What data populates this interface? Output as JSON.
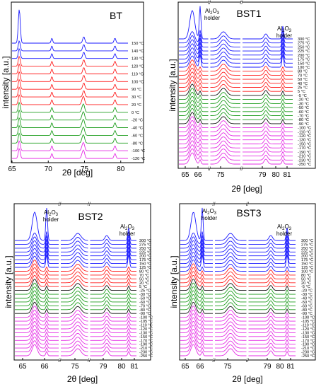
{
  "figure": {
    "colors": {
      "blue": "#1a1aff",
      "red": "#ff2020",
      "green": "#1f9e1f",
      "black": "#111111",
      "magenta": "#e52ee5",
      "frame": "#000000"
    }
  },
  "chart_data": [
    {
      "type": "line",
      "title": "BT",
      "xlabel": "2θ [deg]",
      "ylabel": "intensity [a.u.]",
      "xlim": [
        65,
        81
      ],
      "x_ticks": [
        "65",
        "70",
        "75",
        "80"
      ],
      "peaks_2theta": [
        66.0,
        70.5,
        74.9,
        79.2
      ],
      "series_labels": [
        "150 °C",
        "140 °C",
        "130 °C",
        "120 °C",
        "110 °C",
        "100 °C",
        "90 °C",
        "30 °C",
        "20 °C",
        "0 °C",
        "-20 °C",
        "-40 °C",
        "-60 °C",
        "-80 °C",
        "-100 °C",
        "-120 °C"
      ],
      "series_colors": [
        "blue",
        "blue",
        "blue",
        "red",
        "red",
        "red",
        "red",
        "red",
        "red",
        "green",
        "green",
        "green",
        "green",
        "green",
        "magenta",
        "magenta"
      ],
      "annotations": []
    },
    {
      "type": "line",
      "title": "BST1",
      "xlabel": "2θ [deg]",
      "ylabel": "intensity [a.u.]",
      "x_ticks": [
        "65",
        "66",
        "75",
        "79",
        "80",
        "81"
      ],
      "peaks_2theta": [
        65.8,
        66.3,
        74.6,
        79.4,
        80.5
      ],
      "series_labels": [
        "300 °C",
        "275 °C",
        "250 °C",
        "225 °C",
        "200 °C",
        "175 °C",
        "150 °C",
        "100 °C",
        "80 °C",
        "70 °C",
        "50 °C",
        "40 °C",
        "25 °C",
        "5 °C",
        "-5 °C",
        "-20 °C",
        "-30 °C",
        "-50 °C",
        "-60 °C",
        "-70 °C",
        "-80 °C",
        "-90 °C",
        "-100 °C",
        "-110 °C",
        "-120 °C",
        "-130 °C",
        "-150 °C",
        "-170 °C",
        "-190 °C",
        "-210 °C",
        "-230 °C",
        "-250 °C"
      ],
      "series_colors": [
        "blue",
        "blue",
        "blue",
        "blue",
        "blue",
        "blue",
        "blue",
        "blue",
        "red",
        "red",
        "red",
        "red",
        "red",
        "red",
        "black",
        "green",
        "green",
        "green",
        "green",
        "green",
        "green",
        "black",
        "magenta",
        "magenta",
        "magenta",
        "magenta",
        "magenta",
        "magenta",
        "magenta",
        "magenta",
        "magenta",
        "magenta"
      ],
      "annotations": [
        "Al2O3 holder",
        "Al2O3 holder"
      ]
    },
    {
      "type": "line",
      "title": "BST2",
      "xlabel": "2θ [deg]",
      "ylabel": "intensity [a.u.]",
      "x_ticks": [
        "65",
        "66",
        "75",
        "79",
        "80",
        "81"
      ],
      "peaks_2theta": [
        65.8,
        66.3,
        74.6,
        79.4,
        80.5
      ],
      "series_labels": [
        "300 °C",
        "275 °C",
        "250 °C",
        "225 °C",
        "200 °C",
        "175 °C",
        "150 °C",
        "125 °C",
        "80 °C",
        "70 °C",
        "50 °C",
        "20 °C",
        "5 °C",
        "-25 °C",
        "-30 °C",
        "-50 °C",
        "-60 °C",
        "-70 °C",
        "-80 °C",
        "-90 °C",
        "-100 °C",
        "-105 °C",
        "-110 °C",
        "-120 °C",
        "-130 °C",
        "-150 °C",
        "-170 °C",
        "-190 °C",
        "-210 °C",
        "-230 °C",
        "-250 °C"
      ],
      "series_colors": [
        "blue",
        "blue",
        "blue",
        "blue",
        "blue",
        "blue",
        "blue",
        "blue",
        "red",
        "red",
        "red",
        "red",
        "red",
        "black",
        "green",
        "green",
        "green",
        "green",
        "green",
        "black",
        "magenta",
        "magenta",
        "magenta",
        "magenta",
        "magenta",
        "magenta",
        "magenta",
        "magenta",
        "magenta",
        "magenta",
        "magenta"
      ],
      "annotations": [
        "Al2O3 holder",
        "Al2O3 holder"
      ]
    },
    {
      "type": "line",
      "title": "BST3",
      "xlabel": "2θ [deg]",
      "ylabel": "intensity [a.u.]",
      "x_ticks": [
        "65",
        "66",
        "75",
        "79",
        "80",
        "81"
      ],
      "peaks_2theta": [
        65.8,
        66.3,
        74.6,
        79.4,
        80.5
      ],
      "series_labels": [
        "300 °C",
        "275 °C",
        "250 °C",
        "225 °C",
        "200 °C",
        "175 °C",
        "150 °C",
        "125 °C",
        "100 °C",
        "80 °C",
        "50 °C",
        "20 °C",
        "-5 °C",
        "-20 °C",
        "-30 °C",
        "-40 °C",
        "-50 °C",
        "-60 °C",
        "-80 °C",
        "-90 °C",
        "-100 °C",
        "-105 °C",
        "-110 °C",
        "-120 °C",
        "-130 °C",
        "-150 °C",
        "-170 °C",
        "-190 °C",
        "-210 °C",
        "-230 °C",
        "-250 °C"
      ],
      "series_colors": [
        "blue",
        "blue",
        "blue",
        "blue",
        "blue",
        "blue",
        "blue",
        "blue",
        "blue",
        "red",
        "red",
        "red",
        "red",
        "black",
        "green",
        "green",
        "green",
        "green",
        "green",
        "black",
        "magenta",
        "magenta",
        "magenta",
        "magenta",
        "magenta",
        "magenta",
        "magenta",
        "magenta",
        "magenta",
        "magenta",
        "magenta"
      ],
      "annotations": [
        "Al2O3 holder",
        "Al2O3 holder"
      ]
    }
  ]
}
